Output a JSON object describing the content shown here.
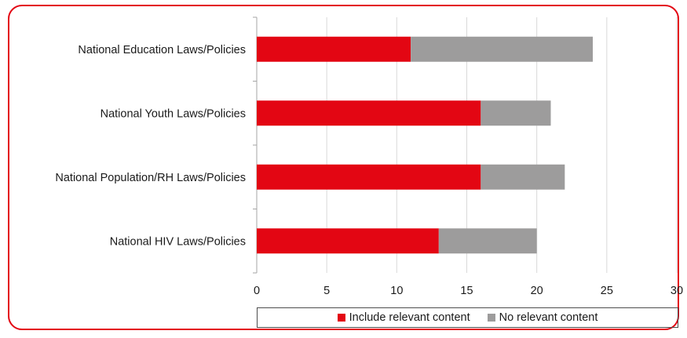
{
  "chart_data": {
    "type": "bar",
    "orientation": "horizontal",
    "stacked": true,
    "categories": [
      "National Education Laws/Policies",
      "National Youth Laws/Policies",
      "National Population/RH Laws/Policies",
      "National HIV Laws/Policies"
    ],
    "series": [
      {
        "name": "Include relevant content",
        "values": [
          11,
          16,
          16,
          13
        ],
        "color": "#e30613"
      },
      {
        "name": "No relevant content",
        "values": [
          13,
          5,
          6,
          7
        ],
        "color": "#9d9c9c"
      }
    ],
    "xlim": [
      0,
      30
    ],
    "xticks": [
      "0",
      "5",
      "10",
      "15",
      "20",
      "25",
      "30"
    ],
    "grid": "vertical",
    "legend_position": "bottom"
  },
  "colors": {
    "frame_border": "#e30613",
    "gridline": "#d9d9d9",
    "axis": "#a6a6a6"
  }
}
